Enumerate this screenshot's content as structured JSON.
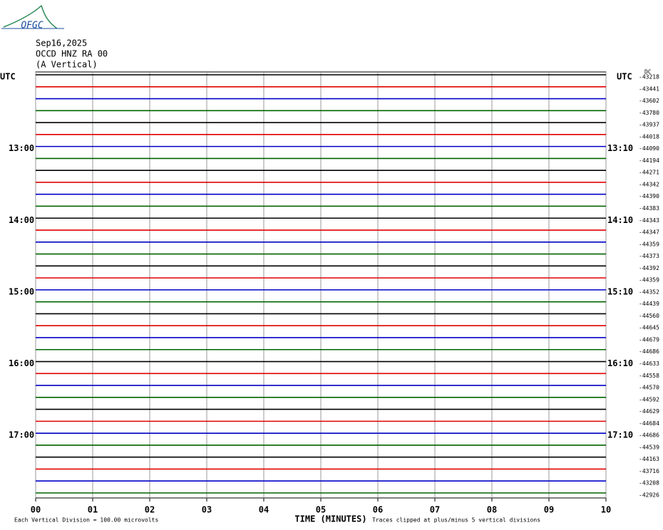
{
  "chart_data": {
    "type": "helicorder",
    "logo": "OFGC",
    "title_lines": [
      "Sep16,2025",
      "OCCD HNZ RA 00",
      "(A Vertical)"
    ],
    "x_label": "TIME (MINUTES)",
    "xlim": [
      0,
      10
    ],
    "xticks": [
      {
        "value": 0,
        "label": "00"
      },
      {
        "value": 1,
        "label": "01"
      },
      {
        "value": 2,
        "label": "02"
      },
      {
        "value": 3,
        "label": "03"
      },
      {
        "value": 4,
        "label": "04"
      },
      {
        "value": 5,
        "label": "05"
      },
      {
        "value": 6,
        "label": "06"
      },
      {
        "value": 7,
        "label": "07"
      },
      {
        "value": 8,
        "label": "08"
      },
      {
        "value": 9,
        "label": "09"
      },
      {
        "value": 10,
        "label": "10"
      }
    ],
    "grid": true,
    "colors": [
      "#000000",
      "#e00000",
      "#0000c8",
      "#006400"
    ],
    "dc_label": "DC",
    "left_labels": [
      "UTC",
      null,
      null,
      null,
      null,
      null,
      "13:00",
      null,
      null,
      null,
      null,
      null,
      "14:00",
      null,
      null,
      null,
      null,
      null,
      "15:00",
      null,
      null,
      null,
      null,
      null,
      "16:00",
      null,
      null,
      null,
      null,
      null,
      "17:00",
      null,
      null,
      null,
      null,
      null
    ],
    "right_labels": [
      "UTC",
      null,
      null,
      null,
      null,
      null,
      "13:10",
      null,
      null,
      null,
      null,
      null,
      "14:10",
      null,
      null,
      null,
      null,
      null,
      "15:10",
      null,
      null,
      null,
      null,
      null,
      "16:10",
      null,
      null,
      null,
      null,
      null,
      "17:10",
      null,
      null,
      null,
      null,
      null
    ],
    "dc_offsets": [
      -43218,
      -43441,
      -43602,
      -43780,
      -43937,
      -44018,
      -44090,
      -44194,
      -44271,
      -44342,
      -44390,
      -44383,
      -44343,
      -44347,
      -44359,
      -44373,
      -44392,
      -44359,
      -44352,
      -44439,
      -44560,
      -44645,
      -44679,
      -44686,
      -44633,
      -44558,
      -44570,
      -44592,
      -44629,
      -44684,
      -44686,
      -44539,
      -44163,
      -43716,
      -43208,
      -42926
    ],
    "footer_left": "Each Vertical Division =  100.00 microvolts",
    "footer_right": "Traces clipped at plus/minus 5 vertical divisions"
  }
}
